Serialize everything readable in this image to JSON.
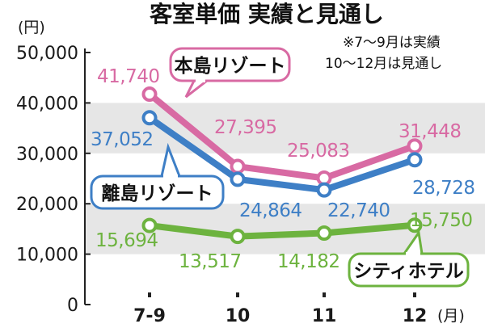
{
  "chart_data": {
    "type": "line",
    "title": "客室単価 実績と見通し",
    "y_unit": "(円)",
    "x_unit": "(月)",
    "note_lines": [
      "※7～9月は実績",
      "10～12月は見通し"
    ],
    "categories": [
      "7-9",
      "10",
      "11",
      "12"
    ],
    "ylim": [
      0,
      50000
    ],
    "yticks": [
      "50,000",
      "40,000",
      "30,000",
      "20,000",
      "10,000",
      "0"
    ],
    "ytick_values": [
      50000,
      40000,
      30000,
      20000,
      10000,
      0
    ],
    "grid_bands": [
      [
        10000,
        20000
      ],
      [
        30000,
        40000
      ]
    ],
    "series": [
      {
        "name": "本島リゾート",
        "values": [
          41740,
          27395,
          25083,
          31448
        ],
        "labels": [
          "41,740",
          "27,395",
          "25,083",
          "31,448"
        ],
        "color": "#d86aa3"
      },
      {
        "name": "離島リゾート",
        "values": [
          37052,
          24864,
          22740,
          28728
        ],
        "labels": [
          "37,052",
          "24,864",
          "22,740",
          "28,728"
        ],
        "color": "#3e7fc6"
      },
      {
        "name": "シティホテル",
        "values": [
          15694,
          13517,
          14182,
          15750
        ],
        "labels": [
          "15,694",
          "13,517",
          "14,182",
          "15,750"
        ],
        "color": "#6db33f"
      }
    ]
  }
}
